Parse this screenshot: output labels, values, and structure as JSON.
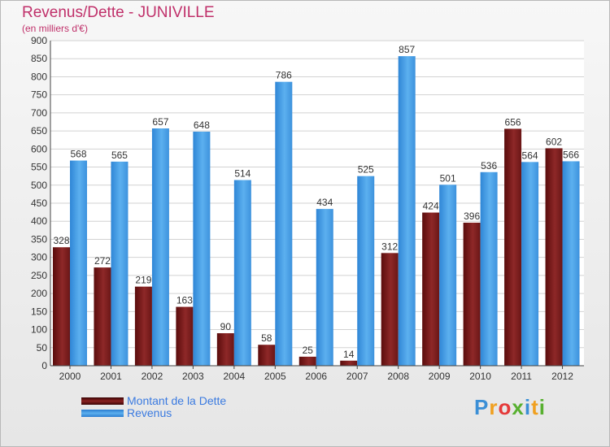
{
  "title": "Revenus/Dette - JUNIVILLE",
  "subtitle": "(en milliers d'€)",
  "logo": {
    "p": "P",
    "r": "r",
    "o": "o",
    "x": "x",
    "i1": "i",
    "t": "t",
    "i2": "i"
  },
  "colors": {
    "debt": "#8b2222",
    "revenue": "#4aa3e8",
    "text": "#c0306a",
    "legend_text": "#3a7ae0"
  },
  "chart_data": {
    "type": "bar",
    "categories": [
      "2000",
      "2001",
      "2002",
      "2003",
      "2004",
      "2005",
      "2006",
      "2007",
      "2008",
      "2009",
      "2010",
      "2011",
      "2012"
    ],
    "series": [
      {
        "name": "Montant de la Dette",
        "values": [
          328,
          272,
          219,
          163,
          90,
          58,
          25,
          14,
          312,
          424,
          396,
          656,
          602
        ]
      },
      {
        "name": "Revenus",
        "values": [
          568,
          565,
          657,
          648,
          514,
          786,
          434,
          525,
          857,
          501,
          536,
          564,
          566
        ]
      }
    ],
    "ylim": [
      0,
      900
    ],
    "ytick_step": 50,
    "grid": true,
    "legend": "bottom-left"
  }
}
